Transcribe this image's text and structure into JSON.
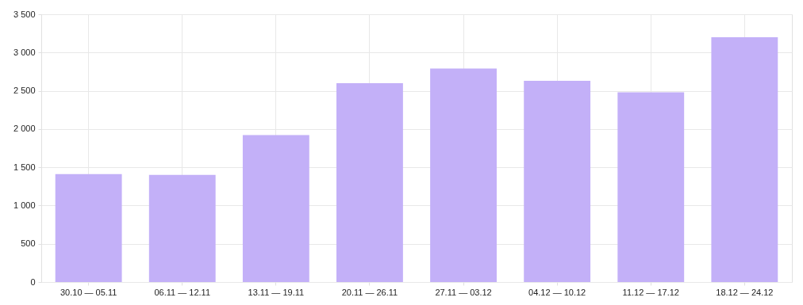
{
  "chart_data": {
    "type": "bar",
    "categories": [
      "30.10 — 05.11",
      "06.11 — 12.11",
      "13.11 — 19.11",
      "20.11 — 26.11",
      "27.11 — 03.12",
      "04.12 — 10.12",
      "11.12 — 17.12",
      "18.12 — 24.12"
    ],
    "values": [
      1410,
      1400,
      1920,
      2600,
      2790,
      2630,
      2480,
      3200
    ],
    "color": "#c3b0f8",
    "ylim": [
      0,
      3500
    ],
    "yticks": [
      0,
      500,
      {
        "value": 1000,
        "label": "1 000"
      },
      {
        "value": 1500,
        "label": "1 500"
      },
      {
        "value": 2000,
        "label": "2 000"
      },
      {
        "value": 2500,
        "label": "2 500"
      },
      {
        "value": 3000,
        "label": "3 000"
      },
      {
        "value": 3500,
        "label": "3 500"
      }
    ],
    "grid": true
  }
}
